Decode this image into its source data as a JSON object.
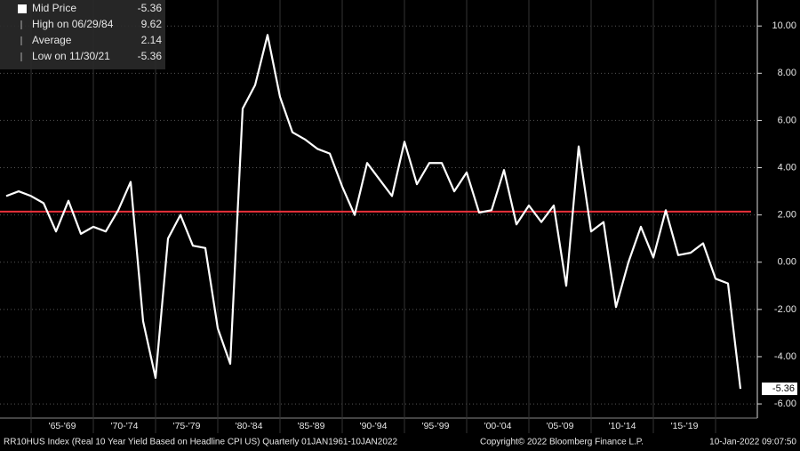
{
  "chart_data": {
    "type": "line",
    "legend": [
      {
        "label": "Mid Price",
        "value": -5.36
      },
      {
        "label": "High on 06/29/84",
        "value": 9.62
      },
      {
        "label": "Average",
        "value": 2.14
      },
      {
        "label": "Low on 11/30/21",
        "value": -5.36
      }
    ],
    "categories": [
      null,
      null,
      null,
      null,
      "'65-'69",
      null,
      null,
      null,
      null,
      "'70-'74",
      null,
      null,
      null,
      null,
      "'75-'79",
      null,
      null,
      null,
      null,
      "'80-'84",
      null,
      null,
      null,
      null,
      "'85-'89",
      null,
      null,
      null,
      null,
      "'90-'94",
      null,
      null,
      null,
      null,
      "'95-'99",
      null,
      null,
      null,
      null,
      "'00-'04",
      null,
      null,
      null,
      null,
      "'05-'09",
      null,
      null,
      null,
      null,
      "'10-'14",
      null,
      null,
      null,
      null,
      "'15-'19",
      null,
      null,
      null,
      null,
      null
    ],
    "series": [
      {
        "name": "Mid Price",
        "color": "#ffffff",
        "values": [
          2.8,
          3.0,
          2.8,
          2.5,
          1.3,
          2.6,
          1.2,
          1.5,
          1.3,
          2.2,
          3.4,
          -2.5,
          -4.9,
          1.0,
          2.0,
          0.7,
          0.6,
          -2.8,
          -4.3,
          6.5,
          7.5,
          9.62,
          7.0,
          5.5,
          5.2,
          4.8,
          4.6,
          3.2,
          2.0,
          4.2,
          3.5,
          2.8,
          5.1,
          3.3,
          4.2,
          4.2,
          3.0,
          3.8,
          2.1,
          2.2,
          3.9,
          1.6,
          2.4,
          1.7,
          2.4,
          -1.0,
          4.9,
          1.3,
          1.7,
          -1.9,
          0.0,
          1.5,
          0.2,
          2.2,
          0.3,
          0.4,
          0.8,
          -0.7,
          -0.9,
          -5.36
        ]
      }
    ],
    "average_color": "#e8303a",
    "ylim": [
      -6.6,
      11.1
    ],
    "yticks": [
      {
        "value": 10,
        "label": "10.00"
      },
      {
        "value": 8,
        "label": "8.00"
      },
      {
        "value": 6,
        "label": "6.00"
      },
      {
        "value": 4,
        "label": "4.00"
      },
      {
        "value": 2,
        "label": "2.00"
      },
      {
        "value": 0,
        "label": "0.00"
      },
      {
        "value": -2,
        "label": "-2.00"
      },
      {
        "value": -4,
        "label": "-4.00"
      },
      {
        "value": -6,
        "label": "-6.00"
      }
    ],
    "grid": true,
    "footer": {
      "left": "RR10HUS Index (Real 10 Year Yield Based on Headline CPI US) Quarterly 01JAN1961-10JAN2022",
      "center": "Copyright© 2022 Bloomberg Finance L.P.",
      "right": "10-Jan-2022 09:07:50"
    }
  }
}
